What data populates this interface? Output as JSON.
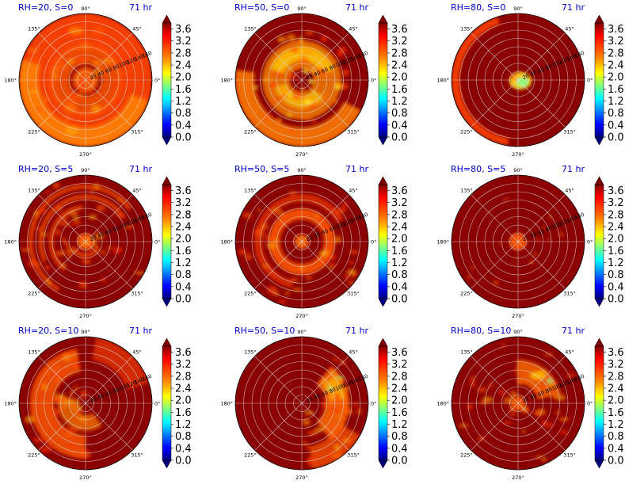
{
  "figure": {
    "time_label": "71 hr",
    "angle_ticks": [
      "0°",
      "45°",
      "90°",
      "135°",
      "180°",
      "225°",
      "270°",
      "315°"
    ],
    "radial_ticks": [
      "20",
      "40",
      "60",
      "80",
      "100",
      "120",
      "140",
      "160"
    ],
    "colorbar_ticks": [
      "0.0",
      "0.4",
      "0.8",
      "1.2",
      "1.6",
      "2.0",
      "2.4",
      "2.8",
      "3.2",
      "3.6"
    ],
    "colors": {
      "title": "#0000cc",
      "background_field": "#8b0000",
      "grid": "#d9d9d9"
    }
  },
  "chart_data": [
    {
      "type": "heatmap",
      "projection": "polar",
      "title": "RH=20, S=0",
      "time": "71 hr",
      "rh": 20,
      "s": 0,
      "clim": [
        0.0,
        3.6
      ],
      "colormap": "jet",
      "pattern": "broad orange/red field covering most of disk, darker rings, lighter core around center"
    },
    {
      "type": "heatmap",
      "projection": "polar",
      "title": "RH=50, S=0",
      "time": "71 hr",
      "rh": 50,
      "s": 0,
      "clim": [
        0.0,
        3.6
      ],
      "colormap": "jet",
      "pattern": "bright orange-yellow ring of spiral bands around center, orange outer region in lower-left"
    },
    {
      "type": "heatmap",
      "projection": "polar",
      "title": "RH=80, S=0",
      "time": "71 hr",
      "rh": 80,
      "s": 0,
      "clim": [
        0.0,
        3.6
      ],
      "colormap": "jet",
      "pattern": "mostly saturated dark red; small yellow-green patch near center, orange arc on left edge"
    },
    {
      "type": "heatmap",
      "projection": "polar",
      "title": "RH=20, S=5",
      "time": "71 hr",
      "rh": 20,
      "s": 5,
      "clim": [
        0.0,
        3.6
      ],
      "colormap": "jet",
      "pattern": "scattered orange bands and spirals over dark red field"
    },
    {
      "type": "heatmap",
      "projection": "polar",
      "title": "RH=50, S=5",
      "time": "71 hr",
      "rh": 50,
      "s": 5,
      "clim": [
        0.0,
        3.6
      ],
      "colormap": "jet",
      "pattern": "orange ring around center, fragmented bands toward edges"
    },
    {
      "type": "heatmap",
      "projection": "polar",
      "title": "RH=80, S=5",
      "time": "71 hr",
      "rh": 80,
      "s": 5,
      "clim": [
        0.0,
        3.6
      ],
      "colormap": "jet",
      "pattern": "almost uniform dark red with small orange core and faint specks"
    },
    {
      "type": "heatmap",
      "projection": "polar",
      "title": "RH=20, S=10",
      "time": "71 hr",
      "rh": 20,
      "s": 10,
      "clim": [
        0.0,
        3.6
      ],
      "colormap": "jet",
      "pattern": "large orange swirling bands on left half"
    },
    {
      "type": "heatmap",
      "projection": "polar",
      "title": "RH=50, S=10",
      "time": "71 hr",
      "rh": 50,
      "s": 10,
      "clim": [
        0.0,
        3.6
      ],
      "colormap": "jet",
      "pattern": "orange band with yellow-green streaks on upper right and right side"
    },
    {
      "type": "heatmap",
      "projection": "polar",
      "title": "RH=80, S=10",
      "time": "71 hr",
      "rh": 80,
      "s": 10,
      "clim": [
        0.0,
        3.6
      ],
      "colormap": "jet",
      "pattern": "orange/yellow band on upper-right, scattered orange elsewhere"
    }
  ]
}
